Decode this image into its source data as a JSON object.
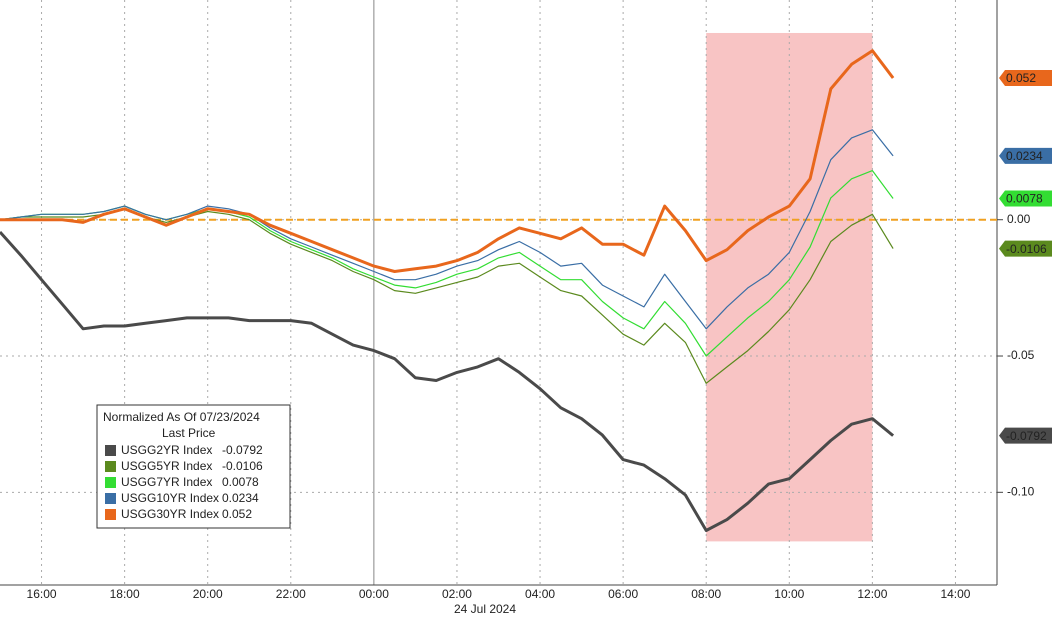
{
  "chart_data": {
    "type": "line",
    "x_sublabel": "24 Jul 2024",
    "legend_title": "Normalized As Of 07/23/2024",
    "legend_subtitle": "Last Price",
    "legend": "lower-left",
    "grid": true,
    "hline": 0,
    "hline_color": "#f0a020",
    "highlight": {
      "x": [
        8,
        12
      ],
      "y": [
        -0.118,
        0.0685
      ],
      "color": "#f8c4c4"
    },
    "xlim": [
      -9,
      15
    ],
    "ylim": [
      -0.134,
      0.0806
    ],
    "xticks": [
      {
        "value": -8,
        "label": "16:00"
      },
      {
        "value": -6,
        "label": "18:00"
      },
      {
        "value": -4,
        "label": "20:00"
      },
      {
        "value": -2,
        "label": "22:00"
      },
      {
        "value": 0,
        "label": "00:00"
      },
      {
        "value": 2,
        "label": "02:00"
      },
      {
        "value": 4,
        "label": "04:00"
      },
      {
        "value": 6,
        "label": "06:00"
      },
      {
        "value": 8,
        "label": "08:00"
      },
      {
        "value": 10,
        "label": "10:00"
      },
      {
        "value": 12,
        "label": "12:00"
      },
      {
        "value": 14,
        "label": "14:00"
      }
    ],
    "yticks": [
      {
        "value": -0.1,
        "label": "-0.10"
      },
      {
        "value": -0.05,
        "label": "-0.05"
      },
      {
        "value": 0,
        "label": "0.00"
      }
    ],
    "x": [
      -9,
      -8.5,
      -8,
      -7.5,
      -7,
      -6.5,
      -6,
      -5.5,
      -5,
      -4.5,
      -4,
      -3.5,
      -3,
      -2.5,
      -2,
      -1.5,
      -1,
      -0.5,
      0,
      0.5,
      1,
      1.5,
      2,
      2.5,
      3,
      3.5,
      4,
      4.5,
      5,
      5.5,
      6,
      6.5,
      7,
      7.5,
      8,
      8.5,
      9,
      9.5,
      10,
      10.5,
      11,
      11.5,
      12,
      12.5
    ],
    "series": [
      {
        "name": "USGG2YR Index",
        "color": "#4a4a4a",
        "width": 3,
        "values": [
          -0.0045,
          -0.013,
          -0.022,
          -0.031,
          -0.04,
          -0.039,
          -0.039,
          -0.038,
          -0.037,
          -0.036,
          -0.036,
          -0.036,
          -0.037,
          -0.037,
          -0.037,
          -0.038,
          -0.042,
          -0.046,
          -0.048,
          -0.051,
          -0.058,
          -0.059,
          -0.056,
          -0.054,
          -0.051,
          -0.056,
          -0.062,
          -0.069,
          -0.073,
          -0.079,
          -0.088,
          -0.09,
          -0.095,
          -0.101,
          -0.114,
          -0.11,
          -0.104,
          -0.097,
          -0.095,
          -0.088,
          -0.081,
          -0.075,
          -0.073,
          -0.0792
        ]
      },
      {
        "name": "USGG5YR Index",
        "color": "#5b8a1e",
        "width": 1.2,
        "values": [
          0,
          0.001,
          0.001,
          0.001,
          0.001,
          0.002,
          0.004,
          0.001,
          -0.001,
          0.001,
          0.003,
          0.002,
          0,
          -0.005,
          -0.009,
          -0.012,
          -0.015,
          -0.019,
          -0.022,
          -0.026,
          -0.027,
          -0.025,
          -0.023,
          -0.021,
          -0.017,
          -0.016,
          -0.021,
          -0.026,
          -0.028,
          -0.035,
          -0.042,
          -0.046,
          -0.038,
          -0.045,
          -0.06,
          -0.054,
          -0.048,
          -0.041,
          -0.033,
          -0.022,
          -0.008,
          -0.002,
          0.002,
          -0.0106
        ]
      },
      {
        "name": "USGG7YR Index",
        "color": "#33dd33",
        "width": 1.2,
        "values": [
          0,
          0.001,
          0.002,
          0.002,
          0.002,
          0.003,
          0.005,
          0.002,
          0,
          0.002,
          0.004,
          0.003,
          0.001,
          -0.004,
          -0.008,
          -0.011,
          -0.014,
          -0.018,
          -0.021,
          -0.024,
          -0.025,
          -0.023,
          -0.02,
          -0.018,
          -0.014,
          -0.012,
          -0.017,
          -0.022,
          -0.022,
          -0.03,
          -0.036,
          -0.04,
          -0.03,
          -0.038,
          -0.05,
          -0.043,
          -0.036,
          -0.03,
          -0.022,
          -0.01,
          0.008,
          0.015,
          0.018,
          0.0078
        ]
      },
      {
        "name": "USGG10YR Index",
        "color": "#3a6ea5",
        "width": 1.2,
        "values": [
          0,
          0.001,
          0.002,
          0.002,
          0.002,
          0.003,
          0.005,
          0.002,
          0,
          0.002,
          0.005,
          0.004,
          0.002,
          -0.003,
          -0.007,
          -0.01,
          -0.013,
          -0.016,
          -0.019,
          -0.022,
          -0.022,
          -0.02,
          -0.017,
          -0.015,
          -0.011,
          -0.008,
          -0.012,
          -0.017,
          -0.016,
          -0.024,
          -0.028,
          -0.032,
          -0.02,
          -0.03,
          -0.04,
          -0.032,
          -0.025,
          -0.02,
          -0.012,
          0.003,
          0.022,
          0.03,
          0.033,
          0.0234
        ]
      },
      {
        "name": "USGG30YR Index",
        "color": "#e8671c",
        "width": 3,
        "values": [
          0,
          0,
          0,
          0,
          -0.001,
          0.002,
          0.004,
          0.001,
          -0.002,
          0.001,
          0.004,
          0.003,
          0.002,
          -0.002,
          -0.005,
          -0.008,
          -0.011,
          -0.014,
          -0.017,
          -0.019,
          -0.018,
          -0.017,
          -0.015,
          -0.012,
          -0.007,
          -0.003,
          -0.005,
          -0.007,
          -0.003,
          -0.009,
          -0.009,
          -0.013,
          0.005,
          -0.004,
          -0.015,
          -0.011,
          -0.004,
          0.001,
          0.005,
          0.015,
          0.048,
          0.057,
          0.062,
          0.052
        ]
      }
    ]
  }
}
